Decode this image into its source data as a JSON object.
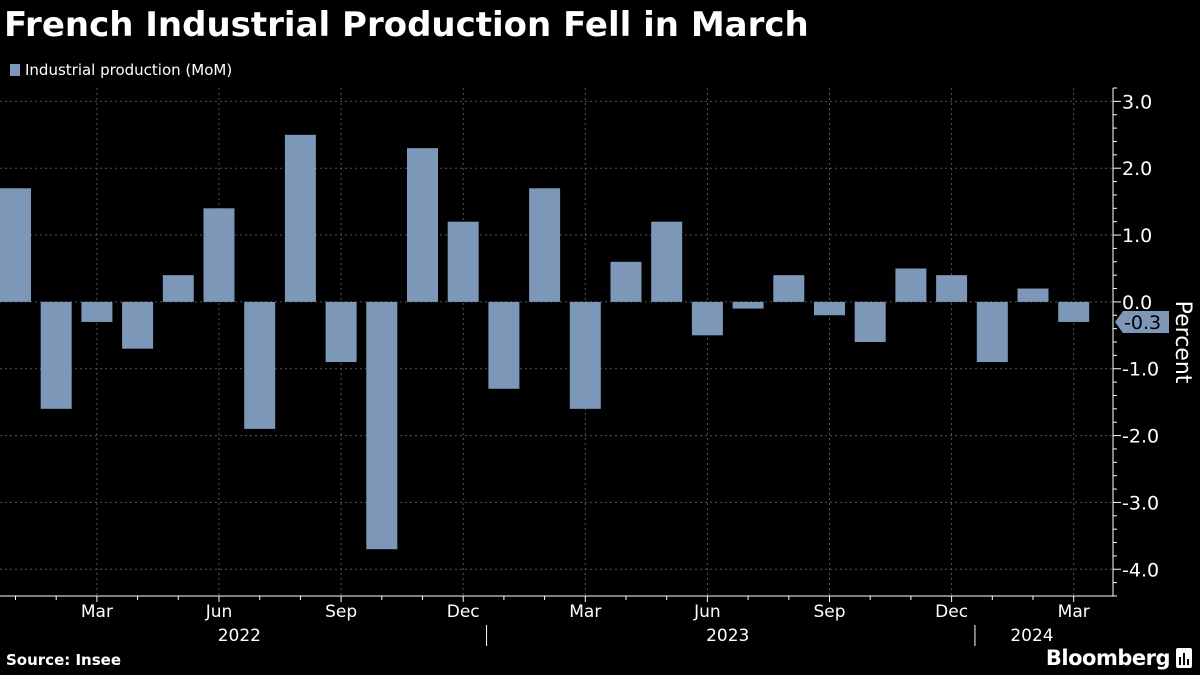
{
  "title": "French Industrial Production Fell in March",
  "colors": {
    "bar": "#7d97b9",
    "background": "#000000",
    "grid": "#555555",
    "text": "#ffffff"
  },
  "source": "Source: Insee",
  "brand": "Bloomberg",
  "brand_icon": "bloomberg-terminal-icon",
  "chart_data": {
    "type": "bar",
    "title": "French Industrial Production Fell in March",
    "legend": [
      "Industrial production (MoM)"
    ],
    "legend_position": "top-left",
    "ylabel": "Percent",
    "y_axis_side": "right",
    "ylim": [
      -4.4,
      3.2
    ],
    "yticks": [
      3.0,
      2.0,
      1.0,
      0.0,
      -1.0,
      -2.0,
      -3.0,
      -4.0
    ],
    "ytick_labels": [
      "3.0",
      "2.0",
      "1.0",
      "0.0",
      "-1.0",
      "-2.0",
      "-3.0",
      "-4.0"
    ],
    "grid": true,
    "categories": [
      "2022-01",
      "2022-02",
      "2022-03",
      "2022-04",
      "2022-05",
      "2022-06",
      "2022-07",
      "2022-08",
      "2022-09",
      "2022-10",
      "2022-11",
      "2022-12",
      "2023-01",
      "2023-02",
      "2023-03",
      "2023-04",
      "2023-05",
      "2023-06",
      "2023-07",
      "2023-08",
      "2023-09",
      "2023-10",
      "2023-11",
      "2023-12",
      "2024-01",
      "2024-02",
      "2024-03"
    ],
    "series": [
      {
        "name": "Industrial production (MoM)",
        "values": [
          1.7,
          -1.6,
          -0.3,
          -0.7,
          0.4,
          1.4,
          -1.9,
          2.5,
          -0.9,
          -3.7,
          2.3,
          1.2,
          -1.3,
          1.7,
          -1.6,
          0.6,
          1.2,
          -0.5,
          -0.1,
          0.4,
          -0.2,
          -0.6,
          0.5,
          0.4,
          -0.9,
          0.2,
          -0.3
        ]
      }
    ],
    "last_value_label": "-0.3",
    "xtick_labels": [
      {
        "category": "2022-03",
        "label": "Mar"
      },
      {
        "category": "2022-06",
        "label": "Jun"
      },
      {
        "category": "2022-09",
        "label": "Sep"
      },
      {
        "category": "2022-12",
        "label": "Dec"
      },
      {
        "category": "2023-03",
        "label": "Mar"
      },
      {
        "category": "2023-06",
        "label": "Jun"
      },
      {
        "category": "2023-09",
        "label": "Sep"
      },
      {
        "category": "2023-12",
        "label": "Dec"
      },
      {
        "category": "2024-03",
        "label": "Mar"
      }
    ],
    "year_labels": [
      {
        "label": "2022",
        "start": "2022-01",
        "end": "2022-12"
      },
      {
        "label": "2023",
        "start": "2023-01",
        "end": "2023-12"
      },
      {
        "label": "2024",
        "start": "2024-01",
        "end": "2024-03"
      }
    ]
  }
}
